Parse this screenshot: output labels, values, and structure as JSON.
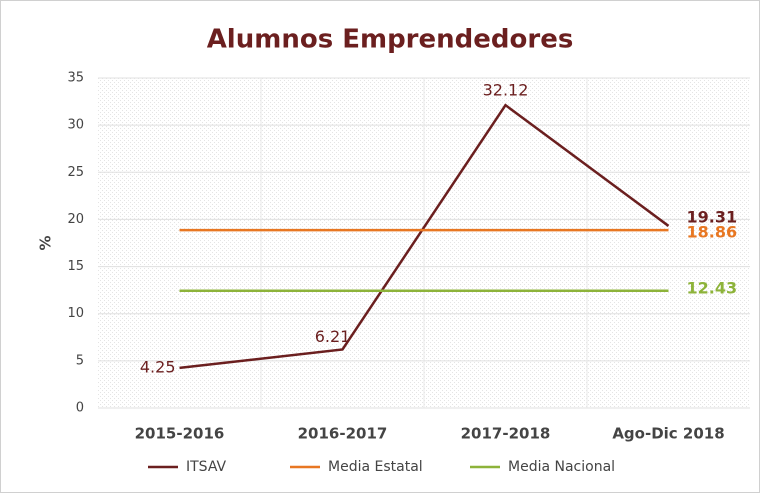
{
  "chart_data": {
    "type": "line",
    "title": "Alumnos Emprendedores",
    "y_label": "%",
    "categories": [
      "2015-2016",
      "2016-2017",
      "2017-2018",
      "Ago-Dic 2018"
    ],
    "series": [
      {
        "name": "ITSAV",
        "color": "#6b1f1f",
        "values": [
          4.25,
          6.21,
          32.12,
          19.31
        ]
      },
      {
        "name": "Media Estatal",
        "color": "#e87722",
        "values": [
          18.86,
          18.86,
          18.86,
          18.86
        ]
      },
      {
        "name": "Media Nacional",
        "color": "#8db33a",
        "values": [
          12.43,
          12.43,
          12.43,
          12.43
        ]
      }
    ],
    "ylim": [
      0,
      35
    ],
    "yticks": [
      0,
      5,
      10,
      15,
      20,
      25,
      30,
      35
    ],
    "grid": true
  }
}
